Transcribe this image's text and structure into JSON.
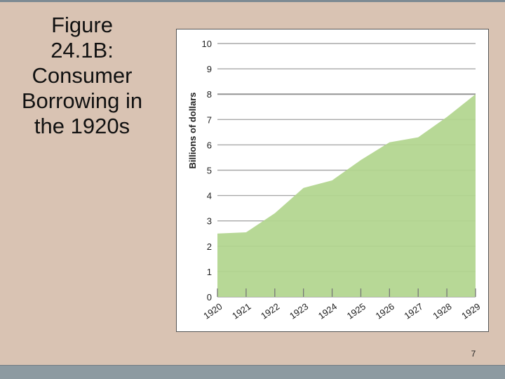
{
  "slide": {
    "title": "Figure\n24.1B:\nConsumer\nBorrowing in\nthe 1920s",
    "page_number": "7",
    "background": "#d9c3b3"
  },
  "chart_data": {
    "type": "area",
    "title": "",
    "xlabel": "",
    "ylabel": "Billions of dollars",
    "x": [
      "1920",
      "1921",
      "1922",
      "1923",
      "1924",
      "1925",
      "1926",
      "1927",
      "1928",
      "1929"
    ],
    "series": [
      {
        "values": [
          2.5,
          2.55,
          3.3,
          4.3,
          4.6,
          5.4,
          6.1,
          6.3,
          7.1,
          8.0
        ]
      }
    ],
    "x_ticks": [
      "1920",
      "1921",
      "1922",
      "1923",
      "1924",
      "1925",
      "1926",
      "1927",
      "1928",
      "1929"
    ],
    "y_ticks": [
      "0",
      "1",
      "2",
      "3",
      "4",
      "5",
      "6",
      "7",
      "8",
      "9",
      "10"
    ],
    "ylim": [
      0,
      10
    ],
    "grid": true,
    "legend": "none",
    "colors": {
      "fill": "#b2d58e",
      "grid": "#a8a8a8",
      "highlight_grid": "#999999"
    }
  }
}
